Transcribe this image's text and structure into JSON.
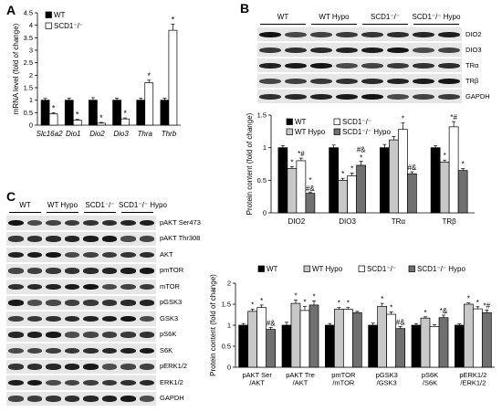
{
  "panels": {
    "A": {
      "letter": "A",
      "chart_data": {
        "type": "bar",
        "ylabel": "mRNA level (fold of change)",
        "ylim": [
          0,
          4.5
        ],
        "yticks": [
          "0",
          "0.5",
          "1",
          "1.5",
          "2",
          "2.5",
          "3",
          "3.5",
          "4",
          "4.5"
        ],
        "categories": [
          "Slc16a2",
          "Dio1",
          "Dio2",
          "Dio3",
          "Thra",
          "Thrb"
        ],
        "legend": [
          "WT",
          "SCD1⁻/⁻"
        ],
        "series": [
          {
            "name": "WT",
            "color": "#000000",
            "values": [
              1.0,
              1.0,
              1.0,
              1.0,
              1.0,
              1.0
            ],
            "errors": [
              0.07,
              0.08,
              0.1,
              0.08,
              0.08,
              0.08
            ],
            "stars": [
              "",
              "",
              "",
              "",
              "",
              ""
            ]
          },
          {
            "name": "SCD1⁻/⁻",
            "color": "#ffffff",
            "values": [
              0.45,
              0.2,
              0.08,
              0.25,
              1.7,
              3.8
            ],
            "errors": [
              0.05,
              0.03,
              0.03,
              0.04,
              0.1,
              0.25
            ],
            "stars": [
              "*",
              "*",
              "*",
              "*",
              "*",
              "*"
            ]
          }
        ]
      }
    },
    "B": {
      "letter": "B",
      "blot": {
        "groups": [
          "WT",
          "WT Hypo",
          "SCD1⁻/⁻",
          "SCD1⁻/⁻ Hypo"
        ],
        "rows": [
          "DIO2",
          "DIO3",
          "TRα",
          "TRβ",
          "GAPDH"
        ]
      },
      "chart_data": {
        "type": "bar",
        "ylabel": "Protein content (fold of change)",
        "ylim": [
          0,
          1.5
        ],
        "yticks": [
          "0",
          "0.5",
          "1",
          "1.5"
        ],
        "categories": [
          "DIO2",
          "DIO3",
          "TRα",
          "TRβ"
        ],
        "legend": [
          "WT",
          "SCD1⁻/⁻",
          "WT Hypo",
          "SCD1⁻/⁻ Hypo"
        ],
        "series": [
          {
            "name": "WT",
            "color": "#000000",
            "values": [
              1.0,
              1.0,
              1.0,
              1.0
            ],
            "errors": [
              0.03,
              0.04,
              0.05,
              0.03
            ],
            "stars": [
              "",
              "",
              "",
              ""
            ]
          },
          {
            "name": "WT Hypo",
            "color": "#c8c8c8",
            "values": [
              0.68,
              0.5,
              1.12,
              0.78
            ],
            "errors": [
              0.03,
              0.03,
              0.05,
              0.03
            ],
            "stars": [
              "*",
              "*",
              "",
              "*"
            ]
          },
          {
            "name": "SCD1⁻/⁻",
            "color": "#ffffff",
            "values": [
              0.8,
              0.57,
              1.28,
              1.32
            ],
            "errors": [
              0.04,
              0.04,
              0.1,
              0.08
            ],
            "stars": [
              "*#",
              "*",
              "*",
              "*#"
            ]
          },
          {
            "name": "SCD1⁻/⁻ Hypo",
            "color": "#707070",
            "values": [
              0.3,
              0.73,
              0.6,
              0.65
            ],
            "errors": [
              0.02,
              0.06,
              0.03,
              0.03
            ],
            "stars": [
              "*\n#&",
              "#&\n*",
              "#&",
              "*"
            ]
          }
        ]
      }
    },
    "C": {
      "letter": "C",
      "blot": {
        "groups": [
          "WT",
          "WT Hypo",
          "SCD1⁻/⁻",
          "SCD1⁻/⁻ Hypo"
        ],
        "rows": [
          "pAKT Ser473",
          "pAKT Thr308",
          "AKT",
          "pmTOR",
          "mTOR",
          "pGSK3",
          "GSK3",
          "pS6K",
          "S6K",
          "pERK1/2",
          "ERK1/2",
          "GAPDH"
        ]
      },
      "chart_data": {
        "type": "bar",
        "ylabel": "Protein content (fold of change)",
        "ylim": [
          0,
          2
        ],
        "yticks": [
          "0",
          "0.5",
          "1",
          "1.5",
          "2"
        ],
        "categories": [
          "pAKT Ser\n/AKT",
          "pAKT Tre\n/AKT",
          "pmTOR\n/mTOR",
          "pGSK3\n/GSK3",
          "pS6K\n/S6K",
          "pERK1/2\n/ERK1/2"
        ],
        "legend": [
          "WT",
          "WT Hypo",
          "SCD1⁻/⁻",
          "SCD1⁻/⁻ Hypo"
        ],
        "series": [
          {
            "name": "WT",
            "color": "#000000",
            "values": [
              1.0,
              1.0,
              1.0,
              1.0,
              1.0,
              1.0
            ],
            "errors": [
              0.04,
              0.07,
              0.04,
              0.05,
              0.04,
              0.03
            ],
            "stars": [
              "",
              "",
              "",
              "",
              "",
              ""
            ]
          },
          {
            "name": "WT Hypo",
            "color": "#c8c8c8",
            "values": [
              1.33,
              1.52,
              1.38,
              1.45,
              1.17,
              1.5
            ],
            "errors": [
              0.05,
              0.08,
              0.04,
              0.07,
              0.03,
              0.03
            ],
            "stars": [
              "*",
              "*",
              "*",
              "*",
              "*",
              "*"
            ]
          },
          {
            "name": "SCD1⁻/⁻",
            "color": "#ffffff",
            "values": [
              1.42,
              1.35,
              1.38,
              1.26,
              0.97,
              1.39
            ],
            "errors": [
              0.06,
              0.1,
              0.04,
              0.06,
              0.04,
              0.05
            ],
            "stars": [
              "*",
              "*",
              "*",
              "*",
              "",
              "*"
            ]
          },
          {
            "name": "SCD1⁻/⁻ Hypo",
            "color": "#707070",
            "values": [
              0.9,
              1.48,
              1.3,
              0.92,
              1.18,
              1.3
            ],
            "errors": [
              0.05,
              0.1,
              0.03,
              0.05,
              0.06,
              0.06
            ],
            "stars": [
              "#&",
              "*",
              "",
              "#&",
              "*&",
              "*#"
            ]
          }
        ]
      }
    }
  }
}
